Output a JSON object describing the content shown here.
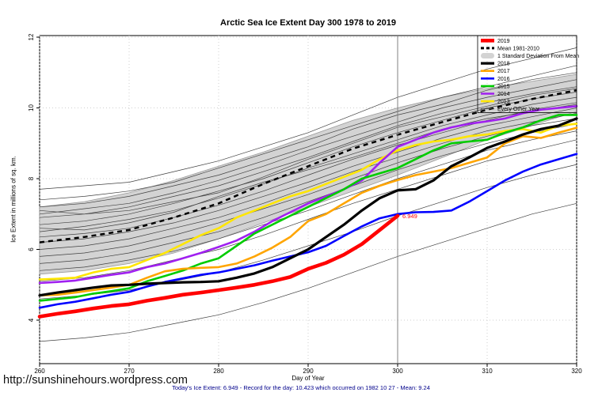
{
  "page": {
    "url_text": "http://sunshinehours.wordpress.com"
  },
  "chart_data": {
    "type": "line",
    "title": "Arctic Sea Ice Extent Day 300 1978 to 2019",
    "xlabel": "Day of Year",
    "ylabel": "Ice Extent in millions of sq. km.",
    "caption": "Today's Ice Extent: 6.949  - Record for the day: 10.423 which occurred on 1982 10 27  - Mean: 9.24",
    "xlim": [
      260,
      320
    ],
    "ylim": [
      2.8,
      12.1
    ],
    "xticks": [
      260,
      270,
      280,
      290,
      300,
      310,
      320
    ],
    "yticks": [
      4,
      6,
      8,
      10,
      12
    ],
    "grid": "dotted",
    "legend_position": "top-right",
    "colors": {
      "caption": "#00008B",
      "grid": "#CFCFCF",
      "vline": "#808080",
      "band_fill": "#D3D3D3",
      "band_edge": "#9A9A9A",
      "other_years": "#404040",
      "annotation": "#FF0000"
    },
    "vline": {
      "x": 300,
      "color": "#808080"
    },
    "annotation": {
      "label": "6.949",
      "x": 300,
      "y": 6.949,
      "color": "#FF0000"
    },
    "x_fine": [
      260,
      262,
      264,
      266,
      268,
      270,
      272,
      274,
      276,
      278,
      280,
      282,
      284,
      286,
      288,
      290,
      292,
      294,
      296,
      298,
      300,
      302,
      304,
      306,
      308,
      310,
      312,
      314,
      316,
      318,
      320
    ],
    "x_coarse": [
      260,
      265,
      270,
      275,
      280,
      285,
      290,
      295,
      300,
      305,
      310,
      315,
      320
    ],
    "band": {
      "label": "1 Standard Deviation From Mean",
      "x_key": "x_coarse",
      "upper": [
        7.2,
        7.35,
        7.6,
        7.95,
        8.35,
        8.75,
        9.2,
        9.65,
        10.0,
        10.3,
        10.55,
        10.75,
        10.95
      ],
      "lower": [
        5.3,
        5.4,
        5.6,
        5.9,
        6.3,
        6.75,
        7.2,
        7.65,
        8.1,
        8.6,
        9.1,
        9.5,
        9.9
      ]
    },
    "mean": {
      "label": "Mean 1981-2010",
      "x_key": "x_coarse",
      "color": "#000000",
      "width": 2.5,
      "values": [
        6.2,
        6.35,
        6.55,
        6.9,
        7.3,
        7.85,
        8.35,
        8.85,
        9.24,
        9.6,
        9.95,
        10.25,
        10.5
      ]
    },
    "other_years": {
      "label": "Every Other Year",
      "x_key": "x_coarse",
      "color": "#404040",
      "width": 0.7,
      "lines": [
        [
          7.7,
          7.8,
          7.9,
          8.2,
          8.5,
          8.9,
          9.3,
          9.8,
          10.3,
          10.7,
          11.1,
          11.4,
          11.7
        ],
        [
          7.4,
          7.5,
          7.65,
          7.9,
          8.3,
          8.7,
          9.1,
          9.5,
          9.9,
          10.3,
          10.6,
          10.9,
          11.2
        ],
        [
          7.2,
          7.3,
          7.5,
          7.8,
          8.1,
          8.5,
          8.9,
          9.4,
          9.8,
          10.1,
          10.5,
          10.8,
          11.0
        ],
        [
          7.1,
          7.0,
          7.1,
          7.35,
          7.6,
          8.05,
          8.55,
          9.0,
          9.45,
          9.75,
          10.05,
          10.35,
          10.55
        ],
        [
          7.0,
          7.15,
          7.3,
          7.6,
          7.95,
          8.35,
          8.8,
          9.2,
          9.6,
          10.0,
          10.3,
          10.55,
          10.8
        ],
        [
          6.9,
          7.0,
          7.2,
          7.5,
          7.8,
          8.2,
          8.6,
          9.05,
          9.5,
          9.85,
          10.15,
          10.4,
          10.6
        ],
        [
          6.7,
          6.8,
          7.0,
          7.3,
          7.65,
          8.0,
          8.45,
          8.9,
          9.3,
          9.65,
          10.0,
          10.25,
          10.45
        ],
        [
          6.6,
          6.55,
          6.75,
          7.05,
          7.5,
          7.9,
          8.25,
          8.6,
          9.0,
          9.4,
          9.7,
          9.9,
          10.1
        ],
        [
          6.5,
          6.65,
          6.85,
          7.1,
          7.45,
          7.85,
          8.3,
          8.7,
          9.1,
          9.5,
          9.8,
          10.1,
          10.3
        ],
        [
          6.35,
          6.45,
          6.6,
          6.9,
          7.25,
          7.65,
          8.1,
          8.55,
          8.95,
          9.3,
          9.65,
          9.95,
          10.15
        ],
        [
          6.2,
          6.3,
          6.5,
          6.75,
          7.1,
          7.5,
          7.9,
          8.35,
          8.75,
          9.15,
          9.5,
          9.75,
          10.0
        ],
        [
          6.0,
          6.1,
          6.3,
          6.6,
          6.9,
          7.3,
          7.75,
          8.2,
          8.6,
          9.0,
          9.35,
          9.6,
          9.85
        ],
        [
          5.8,
          5.9,
          6.1,
          6.4,
          6.75,
          7.15,
          7.55,
          8.0,
          8.45,
          8.85,
          9.2,
          9.5,
          9.7
        ],
        [
          5.6,
          5.7,
          5.9,
          6.2,
          6.5,
          6.9,
          7.35,
          7.8,
          8.25,
          8.65,
          9.0,
          9.3,
          9.55
        ],
        [
          5.4,
          5.5,
          5.7,
          5.95,
          6.3,
          6.7,
          7.1,
          7.55,
          8.0,
          8.4,
          8.8,
          9.1,
          9.35
        ],
        [
          5.1,
          5.2,
          5.4,
          5.7,
          6.0,
          6.4,
          6.85,
          7.3,
          7.7,
          8.1,
          8.5,
          8.8,
          9.1
        ],
        [
          4.6,
          4.7,
          4.85,
          5.1,
          5.35,
          5.7,
          6.1,
          6.5,
          6.95,
          7.35,
          7.75,
          8.1,
          8.4
        ],
        [
          3.4,
          3.5,
          3.65,
          3.9,
          4.15,
          4.5,
          4.9,
          5.35,
          5.8,
          6.2,
          6.6,
          7.0,
          7.3
        ]
      ]
    },
    "series": [
      {
        "name": "2013",
        "color": "#FFE600",
        "width": 2.6,
        "x_key": "x_fine",
        "values": [
          5.15,
          5.17,
          5.2,
          5.35,
          5.45,
          5.5,
          5.7,
          5.9,
          6.15,
          6.4,
          6.6,
          6.9,
          7.1,
          7.3,
          7.5,
          7.65,
          7.85,
          8.05,
          8.25,
          8.55,
          8.8,
          8.95,
          9.05,
          9.1,
          9.2,
          9.25,
          9.35,
          9.4,
          9.3,
          9.5,
          9.55
        ]
      },
      {
        "name": "2014",
        "color": "#A020F0",
        "width": 2.6,
        "x_key": "x_fine",
        "values": [
          5.05,
          5.08,
          5.12,
          5.2,
          5.28,
          5.35,
          5.5,
          5.6,
          5.75,
          5.9,
          6.07,
          6.25,
          6.5,
          6.8,
          7.05,
          7.3,
          7.5,
          7.7,
          7.95,
          8.45,
          8.9,
          9.1,
          9.3,
          9.45,
          9.55,
          9.62,
          9.7,
          9.85,
          9.95,
          10.0,
          10.05
        ]
      },
      {
        "name": "2015",
        "color": "#00CC00",
        "width": 2.6,
        "x_key": "x_fine",
        "values": [
          4.55,
          4.6,
          4.65,
          4.75,
          4.82,
          4.9,
          5.1,
          5.25,
          5.4,
          5.6,
          5.75,
          6.1,
          6.45,
          6.7,
          6.95,
          7.2,
          7.45,
          7.7,
          8.0,
          8.15,
          8.3,
          8.55,
          8.8,
          9.0,
          9.05,
          9.1,
          9.3,
          9.45,
          9.65,
          9.8,
          9.8
        ]
      },
      {
        "name": "2016",
        "color": "#0000FF",
        "width": 2.6,
        "x_key": "x_fine",
        "values": [
          4.35,
          4.45,
          4.52,
          4.62,
          4.72,
          4.8,
          4.95,
          5.08,
          5.18,
          5.28,
          5.35,
          5.45,
          5.55,
          5.68,
          5.8,
          5.92,
          6.1,
          6.38,
          6.65,
          6.88,
          7.0,
          7.05,
          7.06,
          7.1,
          7.35,
          7.65,
          7.95,
          8.2,
          8.4,
          8.55,
          8.7
        ]
      },
      {
        "name": "2017",
        "color": "#FFA500",
        "width": 2.6,
        "x_key": "x_fine",
        "values": [
          4.7,
          4.72,
          4.78,
          4.85,
          4.92,
          5.0,
          5.2,
          5.38,
          5.45,
          5.48,
          5.5,
          5.6,
          5.8,
          6.05,
          6.35,
          6.8,
          7.0,
          7.3,
          7.6,
          7.8,
          7.96,
          8.1,
          8.2,
          8.3,
          8.45,
          8.6,
          9.0,
          9.2,
          9.15,
          9.3,
          9.44
        ]
      },
      {
        "name": "2018",
        "color": "#000000",
        "width": 3.2,
        "x_key": "x_fine",
        "values": [
          4.7,
          4.78,
          4.85,
          4.92,
          4.98,
          5.0,
          5.03,
          5.05,
          5.07,
          5.08,
          5.1,
          5.2,
          5.32,
          5.5,
          5.75,
          6.0,
          6.35,
          6.7,
          7.1,
          7.45,
          7.67,
          7.7,
          7.95,
          8.35,
          8.6,
          8.87,
          9.05,
          9.25,
          9.4,
          9.5,
          9.7
        ]
      },
      {
        "name": "2019",
        "color": "#FF0000",
        "width": 4.6,
        "x_key": "x_fine",
        "values": [
          4.1,
          4.18,
          4.25,
          4.33,
          4.4,
          4.45,
          4.55,
          4.63,
          4.72,
          4.78,
          4.85,
          4.92,
          5.0,
          5.1,
          5.22,
          5.45,
          5.62,
          5.85,
          6.15,
          6.55,
          6.949
        ]
      }
    ],
    "legend": [
      {
        "label": "2019",
        "swatch": "line",
        "color": "#FF0000",
        "width": 4.6
      },
      {
        "label": "Mean 1981-2010",
        "swatch": "dashed",
        "color": "#000000",
        "width": 3
      },
      {
        "label": "1 Standard Deviation From Mean",
        "swatch": "band",
        "color": "#D3D3D3"
      },
      {
        "label": "2018",
        "swatch": "line",
        "color": "#000000",
        "width": 3.2
      },
      {
        "label": "2017",
        "swatch": "line",
        "color": "#FFA500",
        "width": 2.6
      },
      {
        "label": "2016",
        "swatch": "line",
        "color": "#0000FF",
        "width": 2.6
      },
      {
        "label": "2015",
        "swatch": "line",
        "color": "#00CC00",
        "width": 2.6
      },
      {
        "label": "2014",
        "swatch": "line",
        "color": "#A020F0",
        "width": 2.6
      },
      {
        "label": "2013",
        "swatch": "line",
        "color": "#FFE600",
        "width": 2.6
      },
      {
        "label": "Every Other Year",
        "swatch": "line",
        "color": "#404040",
        "width": 0.8
      }
    ]
  }
}
